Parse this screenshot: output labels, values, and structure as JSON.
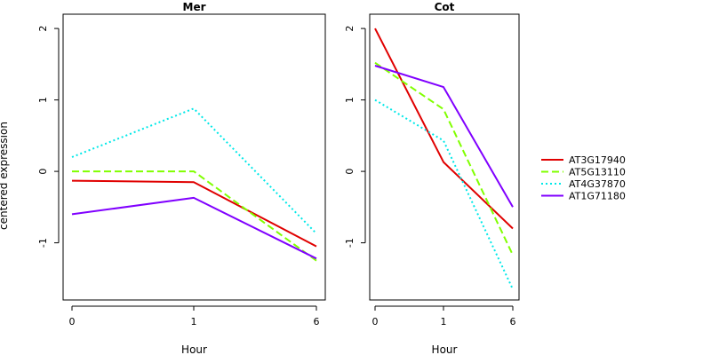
{
  "chart_data": {
    "type": "line",
    "ylabel": "centered expression",
    "x_ticks": [
      "0",
      "1",
      "6"
    ],
    "y_ticks": [
      -1,
      0,
      1,
      2
    ],
    "ylim": [
      -1.8,
      2.2
    ],
    "legend": {
      "position": "right",
      "entries": [
        {
          "name": "AT3G17940",
          "color": "#e00000",
          "dash": "solid"
        },
        {
          "name": "AT5G13110",
          "color": "#80ff00",
          "dash": "dashed"
        },
        {
          "name": "AT4G37870",
          "color": "#00e8e8",
          "dash": "dotted"
        },
        {
          "name": "AT1G71180",
          "color": "#8000ff",
          "dash": "solid"
        }
      ]
    },
    "panels": [
      {
        "title": "Mer",
        "xlabel": "Hour",
        "categories": [
          "0",
          "1",
          "6"
        ],
        "series": [
          {
            "name": "AT3G17940",
            "values": [
              -0.13,
              -0.15,
              -1.05
            ]
          },
          {
            "name": "AT5G13110",
            "values": [
              0.0,
              0.0,
              -1.25
            ]
          },
          {
            "name": "AT4G37870",
            "values": [
              0.2,
              0.88,
              -0.87
            ]
          },
          {
            "name": "AT1G71180",
            "values": [
              -0.6,
              -0.37,
              -1.22
            ]
          }
        ]
      },
      {
        "title": "Cot",
        "xlabel": "Hour",
        "categories": [
          "0",
          "1",
          "6"
        ],
        "series": [
          {
            "name": "AT3G17940",
            "values": [
              2.0,
              0.13,
              -0.8
            ]
          },
          {
            "name": "AT5G13110",
            "values": [
              1.52,
              0.87,
              -1.17
            ]
          },
          {
            "name": "AT4G37870",
            "values": [
              1.0,
              0.43,
              -1.65
            ]
          },
          {
            "name": "AT1G71180",
            "values": [
              1.48,
              1.18,
              -0.5
            ]
          }
        ]
      }
    ]
  }
}
